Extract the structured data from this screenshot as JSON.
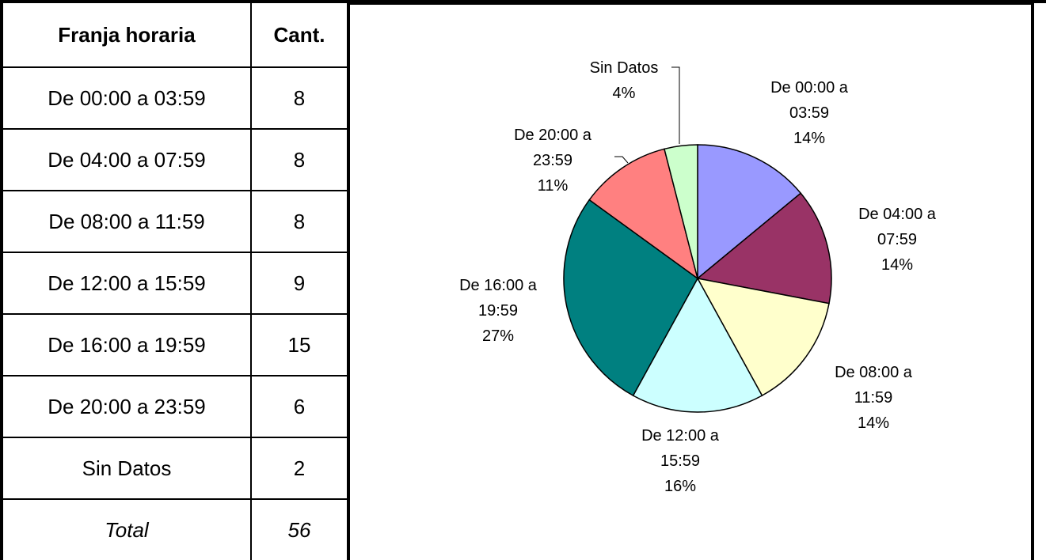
{
  "table": {
    "header": [
      "Franja horaria",
      "Cant."
    ],
    "rows": [
      [
        "De 00:00 a 03:59",
        8
      ],
      [
        "De 04:00 a 07:59",
        8
      ],
      [
        "De 08:00 a 11:59",
        8
      ],
      [
        "De 12:00 a 15:59",
        9
      ],
      [
        "De 16:00 a 19:59",
        15
      ],
      [
        "De 20:00 a 23:59",
        6
      ],
      [
        "Sin Datos",
        2
      ]
    ],
    "total": [
      "Total",
      56
    ]
  },
  "chart_data": {
    "type": "pie",
    "categories": [
      "De 00:00 a 03:59",
      "De 04:00 a 07:59",
      "De 08:00 a 11:59",
      "De 12:00 a 15:59",
      "De 16:00 a 19:59",
      "De 20:00 a 23:59",
      "Sin Datos"
    ],
    "values": [
      14,
      14,
      14,
      16,
      27,
      11,
      4
    ],
    "value_labels": [
      "14%",
      "14%",
      "14%",
      "16%",
      "27%",
      "11%",
      "4%"
    ],
    "colors": [
      "#9999ff",
      "#993366",
      "#ffffcc",
      "#ccffff",
      "#008080",
      "#ff8080",
      "#ccffcc"
    ]
  }
}
